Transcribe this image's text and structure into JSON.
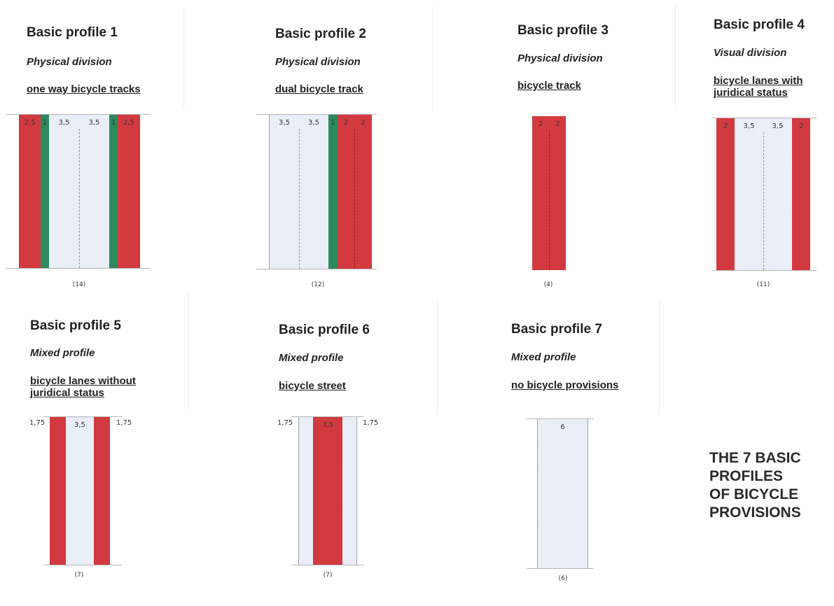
{
  "main_title": [
    "THE 7 BASIC",
    "PROFILES",
    "OF BICYCLE",
    "PROVISIONS"
  ],
  "colors": {
    "bicycle_track": "#d23a3f",
    "green_separator": "#2e8a5c",
    "carriageway": "#ebeff8"
  },
  "profiles": [
    {
      "title": "Basic profile 1",
      "division": "Physical division",
      "type": "one way bicycle tracks",
      "count": "(14)",
      "strips": [
        {
          "label": "2,5",
          "kind": "red"
        },
        {
          "label": "1",
          "kind": "green"
        },
        {
          "label": "3,5",
          "kind": "road"
        },
        {
          "label": "3,5",
          "kind": "road"
        },
        {
          "label": "1",
          "kind": "green"
        },
        {
          "label": "2,5",
          "kind": "red"
        }
      ]
    },
    {
      "title": "Basic profile 2",
      "division": "Physical division",
      "type": "dual bicycle track",
      "count": "(12)",
      "strips": [
        {
          "label": "3,5",
          "kind": "road"
        },
        {
          "label": "3,5",
          "kind": "road"
        },
        {
          "label": "1",
          "kind": "green"
        },
        {
          "label": "2",
          "kind": "red"
        },
        {
          "label": "2",
          "kind": "red"
        }
      ]
    },
    {
      "title": "Basic profile 3",
      "division": "Physical division",
      "type": "bicycle track",
      "count": "(4)",
      "strips": [
        {
          "label": "2",
          "kind": "red"
        },
        {
          "label": "2",
          "kind": "red"
        }
      ]
    },
    {
      "title": "Basic profile 4",
      "division": "Visual division",
      "type": "bicycle lanes with juridical status",
      "count": "(11)",
      "strips": [
        {
          "label": "2",
          "kind": "red"
        },
        {
          "label": "3,5",
          "kind": "road"
        },
        {
          "label": "3,5",
          "kind": "road"
        },
        {
          "label": "2",
          "kind": "red"
        }
      ]
    },
    {
      "title": "Basic profile 5",
      "division": "Mixed profile",
      "type": "bicycle lanes without juridical status",
      "count": "(7)",
      "left_label": "1,75",
      "right_label": "1,75",
      "strips": [
        {
          "label": "",
          "kind": "red"
        },
        {
          "label": "3,5",
          "kind": "road"
        },
        {
          "label": "",
          "kind": "red"
        }
      ]
    },
    {
      "title": "Basic profile 6",
      "division": "Mixed profile",
      "type": "bicycle street",
      "count": "(7)",
      "left_label": "1,75",
      "right_label": "1,75",
      "strips": [
        {
          "label": "",
          "kind": "road"
        },
        {
          "label": "3,5",
          "kind": "red"
        },
        {
          "label": "",
          "kind": "road"
        }
      ]
    },
    {
      "title": "Basic profile 7",
      "division": "Mixed profile",
      "type": "no bicycle provisions",
      "count": "(6)",
      "strips": [
        {
          "label": "6",
          "kind": "road"
        }
      ]
    }
  ]
}
